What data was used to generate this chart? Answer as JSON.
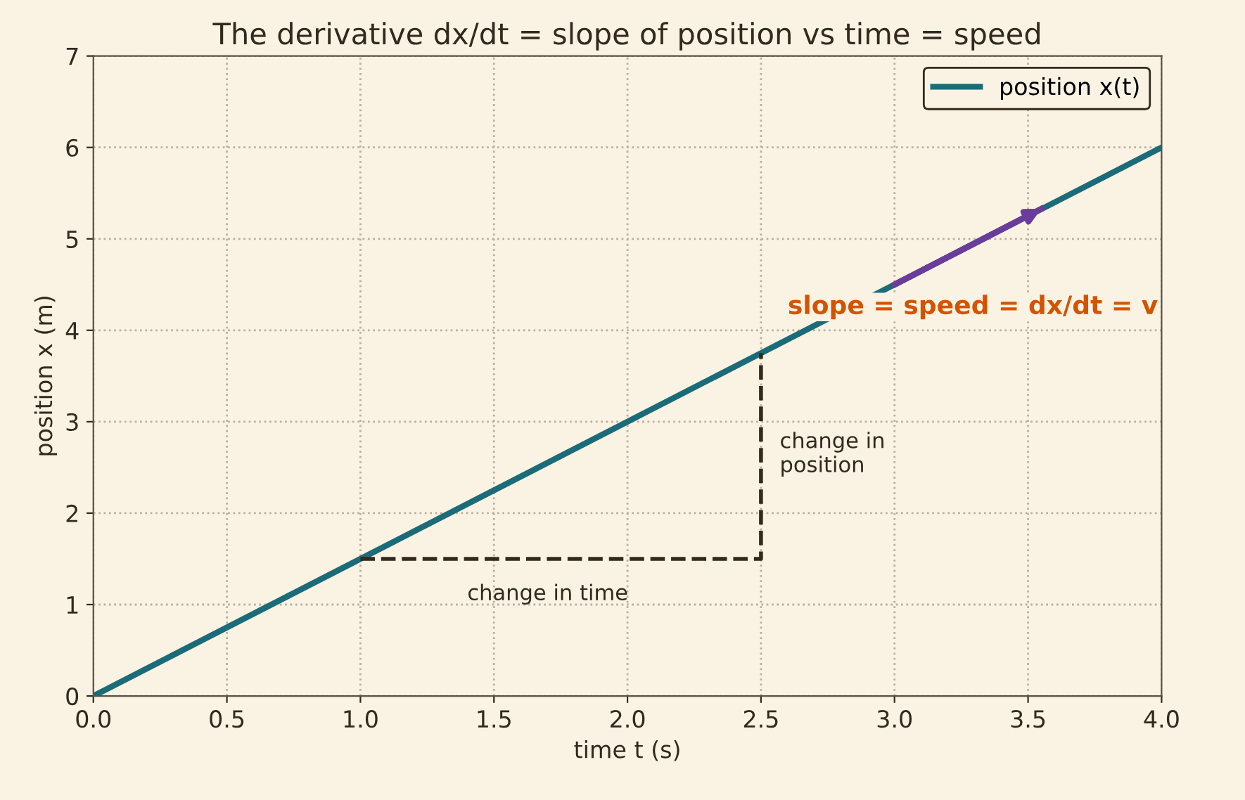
{
  "chart_data": {
    "type": "line",
    "title": "The derivative dx/dt = slope of position vs time = speed",
    "xlabel": "time t (s)",
    "ylabel": "position x (m)",
    "series": [
      {
        "name": "position x(t)",
        "color": "#1b6b78",
        "x": [
          0,
          4
        ],
        "values": [
          0,
          6
        ]
      },
      {
        "color": "#33291f",
        "x": [
          1,
          2.5,
          2.5
        ],
        "values": [
          1.5,
          1.5,
          3.75
        ],
        "line_style": "dashed"
      },
      {
        "color": "#6a3d9a",
        "x": [
          3,
          3.55
        ],
        "values": [
          4.5,
          5.33
        ]
      }
    ],
    "annotations": [
      "change in time",
      "change in\nposition",
      {
        "text": "slope = speed = dx/dt = v",
        "x": 3.55,
        "y": 5.33
      }
    ],
    "xlim": [
      0,
      4
    ],
    "ylim": [
      0,
      7
    ],
    "xticks": [
      {
        "value": 0,
        "label": "0.0"
      },
      0.5,
      {
        "value": 1,
        "label": "1.0"
      },
      1.5,
      {
        "value": 2,
        "label": "2.0"
      },
      2.5,
      {
        "value": 3,
        "label": "3.0"
      },
      3.5,
      {
        "value": 4,
        "label": "4.0"
      }
    ],
    "yticks": [
      0,
      1,
      2,
      3,
      4,
      5,
      6,
      7
    ],
    "grid": true,
    "legend": "top right",
    "line_style": "solid",
    "marker": "none"
  }
}
